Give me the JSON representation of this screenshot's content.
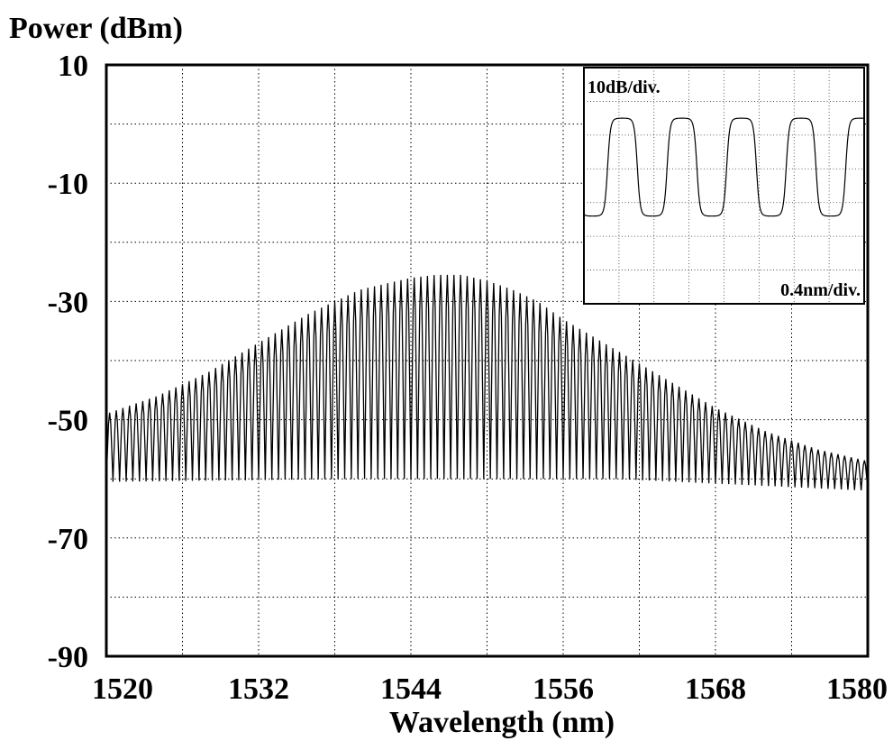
{
  "chart_data": [
    {
      "type": "line",
      "title": "",
      "ylabel": "Power (dBm)",
      "xlabel": "Wavelength (nm)",
      "xlim": [
        1520,
        1580
      ],
      "ylim": [
        -90,
        10
      ],
      "x_ticks": [
        1520,
        1532,
        1544,
        1556,
        1568,
        1580
      ],
      "x_tick_labels": [
        "1520",
        "1532",
        "1544",
        "1556",
        "1568",
        "1580"
      ],
      "y_ticks": [
        10,
        -10,
        -30,
        -50,
        -70,
        -90
      ],
      "y_tick_labels": [
        "10",
        "-10",
        "-30",
        "-50",
        "-70",
        "-90"
      ],
      "grid": true,
      "series": [
        {
          "style": "comb",
          "color": "#000000",
          "peak_envelope": {
            "x": [
              1520,
              1524,
              1528,
              1532,
              1536,
              1540,
              1542,
              1544,
              1546,
              1548,
              1550,
              1552,
              1554,
              1556,
              1560,
              1564,
              1568,
              1572,
              1576,
              1580
            ],
            "y": [
              -49,
              -46,
              -42,
              -37,
              -32,
              -28,
              -27,
              -26,
              -25.5,
              -25.5,
              -26.5,
              -28,
              -30,
              -33,
              -38,
              -43,
              -48,
              -52,
              -55,
              -57
            ]
          },
          "trough_envelope": {
            "x": [
              1520,
              1540,
              1560,
              1570,
              1580
            ],
            "y": [
              -60.5,
              -60,
              -60,
              -61,
              -62
            ]
          },
          "peak_count": 115
        }
      ]
    },
    {
      "type": "line",
      "inset": true,
      "position": "top-right",
      "annotations": [
        "10dB/div.",
        "0.4nm/div."
      ],
      "grid": true,
      "series": [
        {
          "style": "periodic",
          "color": "#000000",
          "x_divisions": [
            0,
            8
          ],
          "y_divisions": [
            0,
            7
          ],
          "peaks_x_div": [
            1.1,
            2.8,
            4.5,
            6.2,
            7.9
          ],
          "high_level_div": 5.5,
          "low_level_div": 2.6
        }
      ]
    }
  ]
}
